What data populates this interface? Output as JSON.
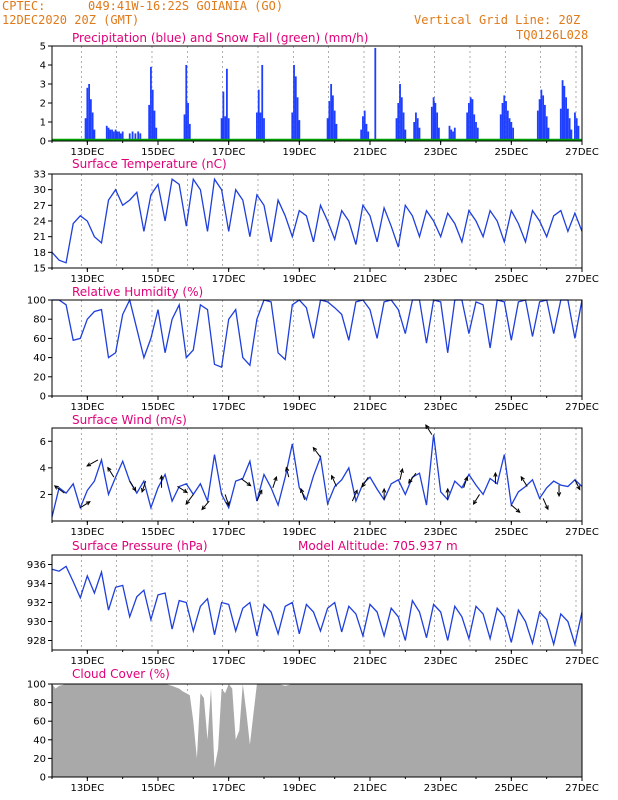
{
  "header": {
    "source": "CPTEC:",
    "location": "049:41W-16:22S   GOIANIA (GO)",
    "datetime": "12DEC2020 20Z (GMT)",
    "grid_note": "Vertical Grid Line: 20Z",
    "model_id": "TQ0126L028"
  },
  "colors": {
    "header_text": "#e07a1a",
    "title_text": "#e0007a",
    "precip": "#1f3fff",
    "snow": "#00a000",
    "line": "#1f3fdc",
    "cloud": "#a9a9a9",
    "arrow": "#000000"
  },
  "chart_data": [
    {
      "type": "bar",
      "title": "Precipitation (blue) and Snow Fall (green) (mm/h)",
      "ylim": [
        0,
        5
      ],
      "yticks": [
        0,
        1,
        2,
        3,
        4,
        5
      ],
      "xticks": [
        "13DEC",
        "15DEC",
        "17DEC",
        "19DEC",
        "21DEC",
        "23DEC",
        "25DEC",
        "27DEC"
      ],
      "grid": true,
      "series": [
        {
          "name": "Precipitation",
          "color": "blue",
          "x": [
            12.95,
            13.0,
            13.05,
            13.1,
            13.15,
            13.2,
            13.55,
            13.6,
            13.65,
            13.7,
            13.75,
            13.8,
            13.85,
            13.9,
            13.95,
            14.0,
            14.2,
            14.28,
            14.36,
            14.44,
            14.5,
            14.75,
            14.8,
            14.85,
            14.9,
            14.95,
            15.75,
            15.8,
            15.85,
            15.9,
            16.8,
            16.85,
            16.9,
            16.95,
            17.0,
            17.8,
            17.85,
            17.9,
            17.95,
            18.0,
            18.8,
            18.85,
            18.9,
            18.95,
            19.0,
            19.8,
            19.85,
            19.9,
            19.95,
            20.0,
            20.05,
            20.75,
            20.8,
            20.85,
            20.9,
            20.95,
            21.15,
            21.75,
            21.8,
            21.85,
            21.9,
            21.95,
            22.0,
            22.25,
            22.3,
            22.35,
            22.4,
            22.75,
            22.8,
            22.85,
            22.9,
            22.95,
            23.25,
            23.3,
            23.35,
            23.4,
            23.75,
            23.8,
            23.85,
            23.9,
            23.95,
            24.0,
            24.05,
            24.7,
            24.75,
            24.8,
            24.85,
            24.9,
            24.95,
            25.0,
            25.05,
            25.75,
            25.8,
            25.85,
            25.9,
            25.95,
            26.0,
            26.05,
            26.4,
            26.45,
            26.5,
            26.55,
            26.6,
            26.65,
            26.7,
            26.8,
            26.85,
            26.9
          ],
          "y": [
            1.2,
            2.8,
            3.0,
            2.2,
            1.5,
            0.6,
            0.8,
            0.7,
            0.6,
            0.6,
            0.5,
            0.6,
            0.5,
            0.5,
            0.4,
            0.5,
            0.4,
            0.5,
            0.4,
            0.5,
            0.4,
            1.9,
            3.9,
            2.7,
            1.6,
            0.7,
            1.4,
            4.0,
            2.0,
            0.9,
            1.2,
            2.6,
            1.3,
            3.8,
            1.2,
            1.5,
            2.7,
            1.5,
            4.0,
            1.2,
            1.5,
            4.0,
            3.4,
            2.3,
            1.1,
            1.2,
            2.1,
            3.0,
            2.4,
            1.6,
            0.9,
            0.6,
            1.3,
            1.6,
            0.9,
            0.5,
            4.9,
            1.2,
            2.0,
            3.0,
            2.3,
            1.5,
            0.6,
            1.0,
            1.5,
            1.2,
            0.7,
            1.8,
            2.3,
            2.0,
            1.5,
            0.7,
            0.8,
            0.6,
            0.5,
            0.7,
            1.5,
            2.0,
            2.3,
            2.2,
            1.4,
            1.0,
            0.7,
            1.4,
            2.0,
            2.4,
            2.1,
            1.6,
            1.2,
            1.0,
            0.7,
            1.6,
            2.2,
            2.7,
            2.4,
            1.9,
            1.3,
            0.7,
            1.7,
            3.2,
            2.9,
            2.3,
            1.7,
            1.2,
            0.6,
            1.5,
            1.2,
            0.8
          ]
        },
        {
          "name": "Snow Fall",
          "color": "green",
          "values_all": 0
        }
      ]
    },
    {
      "type": "line",
      "title": "Surface Temperature (nC)",
      "ylim": [
        15,
        33
      ],
      "yticks": [
        15,
        18,
        21,
        24,
        27,
        30,
        33
      ],
      "xticks": [
        "13DEC",
        "15DEC",
        "17DEC",
        "19DEC",
        "21DEC",
        "23DEC",
        "25DEC",
        "27DEC"
      ],
      "grid": true,
      "x": [
        12.0,
        12.2,
        12.4,
        12.6,
        12.8,
        13.0,
        13.2,
        13.4,
        13.6,
        13.8,
        14.0,
        14.2,
        14.4,
        14.6,
        14.8,
        15.0,
        15.2,
        15.4,
        15.6,
        15.8,
        16.0,
        16.2,
        16.4,
        16.6,
        16.8,
        17.0,
        17.2,
        17.4,
        17.6,
        17.8,
        18.0,
        18.2,
        18.4,
        18.6,
        18.8,
        19.0,
        19.2,
        19.4,
        19.6,
        19.8,
        20.0,
        20.2,
        20.4,
        20.6,
        20.8,
        21.0,
        21.2,
        21.4,
        21.6,
        21.8,
        22.0,
        22.2,
        22.4,
        22.6,
        22.8,
        23.0,
        23.2,
        23.4,
        23.6,
        23.8,
        24.0,
        24.2,
        24.4,
        24.6,
        24.8,
        25.0,
        25.2,
        25.4,
        25.6,
        25.8,
        26.0,
        26.2,
        26.4,
        26.6,
        26.8,
        27.0
      ],
      "y": [
        18,
        16.5,
        16,
        23.5,
        25,
        24,
        21,
        19.8,
        28,
        30,
        27,
        28,
        29.5,
        22,
        29,
        31,
        24,
        32,
        31,
        23,
        32,
        30,
        22,
        32,
        30,
        22,
        30,
        28,
        21,
        29,
        27,
        20,
        28,
        25,
        21,
        26,
        25,
        20,
        27,
        24,
        20.5,
        26,
        24,
        19.5,
        27,
        25,
        20,
        26.5,
        23,
        19,
        27,
        25,
        21,
        26,
        24,
        21,
        25.5,
        23.5,
        20,
        26,
        24,
        21,
        26,
        24,
        20,
        26,
        23.5,
        20,
        26,
        24,
        21,
        25,
        26,
        22,
        25.5,
        22
      ]
    },
    {
      "type": "line",
      "title": "Relative Humidity (%)",
      "ylim": [
        0,
        100
      ],
      "yticks": [
        0,
        20,
        40,
        60,
        80,
        100
      ],
      "xticks": [
        "13DEC",
        "15DEC",
        "17DEC",
        "19DEC",
        "21DEC",
        "23DEC",
        "25DEC",
        "27DEC"
      ],
      "grid": true,
      "x": [
        12.0,
        12.2,
        12.4,
        12.6,
        12.8,
        13.0,
        13.2,
        13.4,
        13.6,
        13.8,
        14.0,
        14.2,
        14.4,
        14.6,
        14.8,
        15.0,
        15.2,
        15.4,
        15.6,
        15.8,
        16.0,
        16.2,
        16.4,
        16.6,
        16.8,
        17.0,
        17.2,
        17.4,
        17.6,
        17.8,
        18.0,
        18.2,
        18.4,
        18.6,
        18.8,
        19.0,
        19.2,
        19.4,
        19.6,
        19.8,
        20.0,
        20.2,
        20.4,
        20.6,
        20.8,
        21.0,
        21.2,
        21.4,
        21.6,
        21.8,
        22.0,
        22.2,
        22.4,
        22.6,
        22.8,
        23.0,
        23.2,
        23.4,
        23.6,
        23.8,
        24.0,
        24.2,
        24.4,
        24.6,
        24.8,
        25.0,
        25.2,
        25.4,
        25.6,
        25.8,
        26.0,
        26.2,
        26.4,
        26.6,
        26.8,
        27.0
      ],
      "y": [
        100,
        100,
        95,
        58,
        60,
        80,
        88,
        90,
        40,
        45,
        85,
        100,
        70,
        40,
        60,
        90,
        45,
        80,
        95,
        40,
        48,
        95,
        90,
        33,
        30,
        80,
        90,
        40,
        32,
        80,
        100,
        98,
        45,
        38,
        95,
        100,
        92,
        60,
        100,
        98,
        92,
        85,
        58,
        98,
        100,
        90,
        60,
        98,
        100,
        90,
        65,
        100,
        100,
        55,
        100,
        98,
        45,
        100,
        100,
        65,
        98,
        95,
        50,
        100,
        98,
        58,
        98,
        100,
        62,
        98,
        100,
        65,
        100,
        100,
        60,
        100
      ]
    },
    {
      "type": "line",
      "title": "Surface Wind (m/s)",
      "ylim": [
        0,
        7
      ],
      "yticks": [
        2,
        4,
        6
      ],
      "xticks": [
        "13DEC",
        "15DEC",
        "17DEC",
        "19DEC",
        "21DEC",
        "23DEC",
        "25DEC",
        "27DEC"
      ],
      "grid": true,
      "x": [
        12.0,
        12.2,
        12.4,
        12.6,
        12.8,
        13.0,
        13.2,
        13.4,
        13.6,
        13.8,
        14.0,
        14.2,
        14.4,
        14.6,
        14.8,
        15.0,
        15.2,
        15.4,
        15.6,
        15.8,
        16.0,
        16.2,
        16.4,
        16.6,
        16.8,
        17.0,
        17.2,
        17.4,
        17.6,
        17.8,
        18.0,
        18.2,
        18.4,
        18.6,
        18.8,
        19.0,
        19.2,
        19.4,
        19.6,
        19.8,
        20.0,
        20.2,
        20.4,
        20.6,
        20.8,
        21.0,
        21.2,
        21.4,
        21.6,
        21.8,
        22.0,
        22.2,
        22.4,
        22.6,
        22.8,
        23.0,
        23.2,
        23.4,
        23.6,
        23.8,
        24.0,
        24.2,
        24.4,
        24.6,
        24.8,
        25.0,
        25.2,
        25.4,
        25.6,
        25.8,
        26.0,
        26.2,
        26.4,
        26.6,
        26.8,
        27.0
      ],
      "y": [
        0.3,
        2.5,
        2.1,
        2.8,
        1.0,
        2.3,
        3.0,
        4.6,
        2.0,
        3.3,
        4.5,
        3.0,
        2.1,
        3.0,
        1.0,
        2.5,
        3.5,
        1.5,
        2.6,
        2.8,
        2.0,
        2.8,
        1.5,
        5.0,
        2.0,
        1.0,
        3.0,
        3.2,
        4.5,
        1.5,
        3.5,
        2.5,
        1.2,
        3.3,
        5.8,
        2.5,
        1.6,
        3.4,
        4.8,
        1.3,
        2.6,
        3.1,
        4.0,
        1.5,
        2.8,
        3.3,
        2.4,
        1.6,
        2.8,
        3.1,
        2.0,
        3.3,
        3.6,
        1.2,
        6.5,
        2.2,
        1.6,
        3.0,
        2.5,
        3.5,
        2.7,
        2.0,
        3.2,
        2.8,
        5.0,
        1.2,
        2.2,
        2.6,
        3.1,
        1.7,
        2.5,
        3.0,
        2.7,
        2.6,
        3.1,
        2.6
      ],
      "arrows": {
        "x": [
          12.35,
          12.8,
          13.3,
          13.75,
          14.2,
          14.65,
          15.1,
          15.55,
          16.0,
          16.45,
          16.9,
          17.35,
          17.8,
          18.25,
          18.7,
          19.15,
          19.6,
          20.05,
          20.5,
          20.95,
          21.4,
          21.85,
          22.3,
          22.75,
          23.2,
          23.65,
          24.1,
          24.55,
          25.0,
          25.45,
          25.9,
          26.35,
          26.8
        ],
        "u": [
          -0.8,
          0.8,
          -0.9,
          -0.5,
          0.5,
          -0.3,
          0.0,
          0.8,
          -0.6,
          -0.6,
          0.3,
          0.8,
          0.4,
          0.3,
          -0.2,
          -0.3,
          -0.6,
          -0.4,
          0.4,
          -0.5,
          0.0,
          0.2,
          -0.6,
          -0.5,
          0.0,
          0.3,
          -0.5,
          0.0,
          0.7,
          -0.5,
          0.4,
          0.0,
          0.4
        ],
        "v": [
          0.6,
          0.5,
          -0.5,
          0.8,
          -0.8,
          -0.9,
          1.0,
          -0.5,
          -0.8,
          -0.7,
          -0.9,
          -0.6,
          0.9,
          0.9,
          0.8,
          0.9,
          0.8,
          0.9,
          0.9,
          -0.8,
          0.9,
          0.9,
          -0.8,
          0.8,
          0.9,
          0.9,
          -0.8,
          0.9,
          -0.6,
          0.8,
          -0.9,
          -0.9,
          -0.8
        ]
      }
    },
    {
      "type": "line",
      "title": "Surface Pressure (hPa)",
      "annotation": "Model Altitude: 705.937  m",
      "ylim": [
        927,
        937
      ],
      "yticks": [
        928,
        930,
        932,
        934,
        936
      ],
      "xticks": [
        "13DEC",
        "15DEC",
        "17DEC",
        "19DEC",
        "21DEC",
        "23DEC",
        "25DEC",
        "27DEC"
      ],
      "grid": true,
      "x": [
        12.0,
        12.2,
        12.4,
        12.6,
        12.8,
        13.0,
        13.2,
        13.4,
        13.6,
        13.8,
        14.0,
        14.2,
        14.4,
        14.6,
        14.8,
        15.0,
        15.2,
        15.4,
        15.6,
        15.8,
        16.0,
        16.2,
        16.4,
        16.6,
        16.8,
        17.0,
        17.2,
        17.4,
        17.6,
        17.8,
        18.0,
        18.2,
        18.4,
        18.6,
        18.8,
        19.0,
        19.2,
        19.4,
        19.6,
        19.8,
        20.0,
        20.2,
        20.4,
        20.6,
        20.8,
        21.0,
        21.2,
        21.4,
        21.6,
        21.8,
        22.0,
        22.2,
        22.4,
        22.6,
        22.8,
        23.0,
        23.2,
        23.4,
        23.6,
        23.8,
        24.0,
        24.2,
        24.4,
        24.6,
        24.8,
        25.0,
        25.2,
        25.4,
        25.6,
        25.8,
        26.0,
        26.2,
        26.4,
        26.6,
        26.8,
        27.0
      ],
      "y": [
        935.5,
        935.3,
        935.8,
        934.2,
        932.5,
        934.8,
        933.0,
        935.2,
        931.2,
        933.6,
        933.8,
        930.5,
        932.6,
        933.3,
        930.2,
        932.8,
        933.0,
        929.2,
        932.2,
        932.0,
        929.0,
        931.6,
        932.4,
        928.6,
        932.0,
        931.8,
        929.0,
        931.4,
        932.0,
        928.5,
        931.8,
        931.0,
        928.7,
        931.6,
        932.0,
        928.7,
        931.8,
        931.0,
        929.0,
        931.4,
        932.0,
        928.9,
        931.6,
        930.8,
        928.5,
        931.8,
        931.0,
        928.5,
        931.4,
        930.5,
        928.0,
        932.2,
        931.0,
        928.3,
        931.8,
        931.0,
        928.0,
        931.6,
        930.5,
        928.2,
        931.6,
        930.8,
        928.2,
        931.4,
        930.5,
        927.8,
        931.2,
        930.0,
        927.7,
        931.0,
        930.2,
        927.6,
        930.8,
        930.0,
        927.6,
        931.0
      ]
    },
    {
      "type": "area",
      "title": "Cloud Cover (%)",
      "ylim": [
        0,
        100
      ],
      "yticks": [
        0,
        20,
        40,
        60,
        80,
        100
      ],
      "xticks": [
        "13DEC",
        "15DEC",
        "17DEC",
        "19DEC",
        "21DEC",
        "23DEC",
        "25DEC",
        "27DEC"
      ],
      "grid": true,
      "x": [
        12.0,
        12.1,
        12.2,
        12.4,
        12.6,
        12.8,
        13.0,
        13.2,
        13.4,
        13.6,
        13.8,
        14.0,
        14.2,
        14.4,
        14.6,
        14.8,
        15.0,
        15.2,
        15.4,
        15.6,
        15.7,
        15.8,
        15.9,
        16.0,
        16.1,
        16.2,
        16.3,
        16.4,
        16.5,
        16.6,
        16.7,
        16.8,
        16.9,
        17.0,
        17.1,
        17.2,
        17.3,
        17.4,
        17.5,
        17.6,
        17.8,
        18.0,
        18.2,
        18.4,
        18.6,
        18.8,
        19.0,
        19.5,
        20.0,
        20.5,
        21.0,
        21.5,
        22.0,
        22.5,
        23.0,
        23.5,
        24.0,
        24.5,
        25.0,
        25.5,
        26.0,
        26.5,
        27.0
      ],
      "y": [
        100,
        95,
        98,
        100,
        100,
        100,
        100,
        100,
        100,
        100,
        100,
        100,
        100,
        100,
        100,
        100,
        100,
        100,
        98,
        95,
        92,
        90,
        88,
        60,
        20,
        90,
        85,
        40,
        95,
        10,
        30,
        95,
        90,
        100,
        95,
        40,
        50,
        100,
        70,
        35,
        100,
        100,
        100,
        100,
        98,
        100,
        100,
        100,
        100,
        100,
        100,
        100,
        100,
        100,
        100,
        100,
        100,
        100,
        100,
        100,
        100,
        100,
        100
      ]
    }
  ]
}
